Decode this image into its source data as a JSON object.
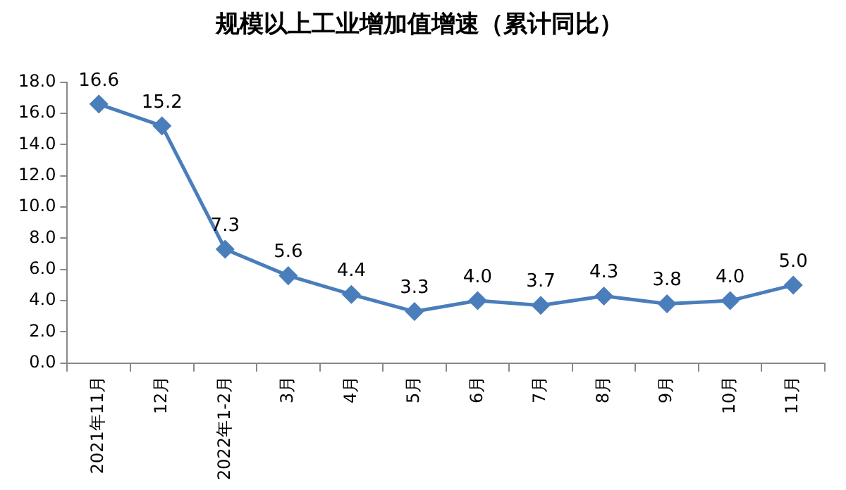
{
  "chart_data": {
    "type": "line",
    "title": "规模以上工业增加值增速（累计同比）",
    "categories": [
      "2021年11月",
      "12月",
      "2022年1-2月",
      "3月",
      "4月",
      "5月",
      "6月",
      "7月",
      "8月",
      "9月",
      "10月",
      "11月"
    ],
    "values": [
      16.6,
      15.2,
      7.3,
      5.6,
      4.4,
      3.3,
      4.0,
      3.7,
      4.3,
      3.8,
      4.0,
      5.0
    ],
    "value_labels": [
      "16.6",
      "15.2",
      "7.3",
      "5.6",
      "4.4",
      "3.3",
      "4.0",
      "3.7",
      "4.3",
      "3.8",
      "4.0",
      "5.0"
    ],
    "color": "#4a7ebb",
    "marker": "diamond",
    "line_style": "solid",
    "grid": false,
    "legend": false,
    "ylim": [
      0,
      18
    ],
    "yticks": [
      {
        "value": 0,
        "label": "0.0"
      },
      {
        "value": 2,
        "label": "2.0"
      },
      {
        "value": 4,
        "label": "4.0"
      },
      {
        "value": 6,
        "label": "6.0"
      },
      {
        "value": 8,
        "label": "8.0"
      },
      {
        "value": 10,
        "label": "10.0"
      },
      {
        "value": 12,
        "label": "12.0"
      },
      {
        "value": 14,
        "label": "14.0"
      },
      {
        "value": 16,
        "label": "16.0"
      },
      {
        "value": 18,
        "label": "18.0"
      }
    ]
  }
}
